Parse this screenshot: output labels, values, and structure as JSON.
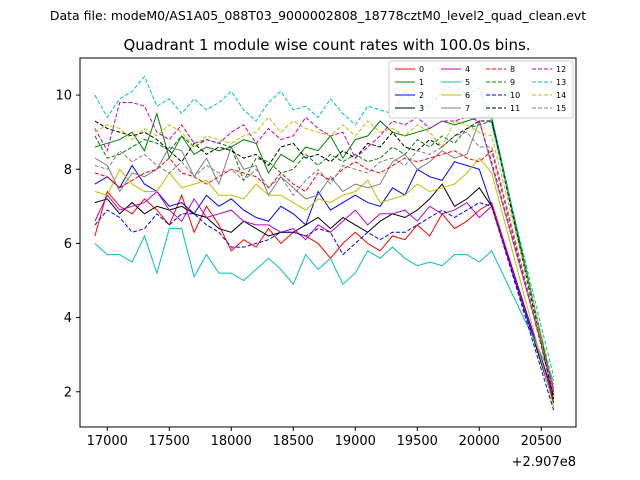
{
  "page": {
    "suptitle": "Data file: modeM0/AS1A05_088T03_9000002808_18778cztM0_level2_quad_clean.evt",
    "title": "Quadrant 1 module wise count rates with 100.0s bins."
  },
  "chart_data": {
    "type": "line",
    "title": "Quadrant 1 module wise count rates with 100.0s bins.",
    "xlabel": "",
    "ylabel": "",
    "x_offset_label": "+2.907e8",
    "xlim": [
      16780,
      20780
    ],
    "ylim": [
      1.05,
      11.0
    ],
    "xticks": [
      17000,
      17500,
      18000,
      18500,
      19000,
      19500,
      20000,
      20500
    ],
    "yticks": [
      2,
      4,
      6,
      8,
      10
    ],
    "grid": false,
    "legend_position": "top-right",
    "legend_columns": 4,
    "x_start": 16900,
    "x_step": 100,
    "drop_x": 20600,
    "series": [
      {
        "name": "0",
        "color": "#ff0000",
        "dash": "solid",
        "values": [
          6.2,
          7.4,
          7.0,
          6.8,
          7.2,
          6.9,
          6.5,
          7.3,
          6.3,
          7.0,
          6.5,
          5.8,
          6.1,
          5.9,
          6.4,
          6.0,
          6.3,
          6.2,
          6.0,
          5.6,
          6.0,
          6.3,
          6.0,
          5.8,
          6.2,
          6.1,
          6.5,
          6.2,
          6.8,
          6.4,
          6.6,
          6.9,
          7.1
        ],
        "drop": 1.8
      },
      {
        "name": "1",
        "color": "#008000",
        "dash": "solid",
        "values": [
          8.6,
          8.7,
          8.8,
          9.0,
          8.5,
          9.5,
          8.3,
          8.9,
          8.4,
          8.6,
          8.5,
          8.6,
          8.8,
          8.7,
          7.9,
          8.4,
          8.2,
          8.6,
          8.5,
          8.9,
          8.3,
          8.8,
          8.9,
          9.3,
          9.0,
          8.9,
          9.0,
          9.1,
          9.3,
          9.2,
          9.3,
          9.4,
          9.4
        ],
        "drop": 2.0
      },
      {
        "name": "2",
        "color": "#0000ff",
        "dash": "solid",
        "values": [
          7.6,
          7.8,
          7.5,
          8.1,
          7.6,
          7.4,
          7.0,
          7.1,
          6.8,
          7.3,
          7.0,
          7.2,
          6.9,
          6.7,
          6.6,
          7.0,
          6.8,
          6.5,
          7.4,
          6.9,
          7.1,
          7.3,
          7.1,
          7.0,
          7.5,
          7.3,
          8.0,
          7.8,
          7.7,
          8.2,
          8.1,
          8.0,
          7.0
        ],
        "drop": 1.9
      },
      {
        "name": "3",
        "color": "#000000",
        "dash": "solid",
        "values": [
          7.1,
          7.2,
          6.8,
          7.1,
          6.8,
          7.0,
          6.9,
          7.0,
          6.8,
          6.7,
          6.4,
          6.3,
          6.6,
          6.4,
          6.2,
          6.3,
          6.3,
          6.5,
          6.7,
          6.4,
          6.7,
          6.5,
          6.3,
          6.6,
          6.8,
          6.7,
          6.9,
          7.2,
          7.6,
          7.0,
          7.2,
          7.5,
          7.0
        ],
        "drop": 1.7
      },
      {
        "name": "4",
        "color": "#bf00bf",
        "dash": "solid",
        "values": [
          6.6,
          7.3,
          6.9,
          7.0,
          7.1,
          7.4,
          6.9,
          6.6,
          7.2,
          6.7,
          6.8,
          6.9,
          6.6,
          6.5,
          6.5,
          6.3,
          6.4,
          6.1,
          6.5,
          6.3,
          6.6,
          6.9,
          6.5,
          6.8,
          6.8,
          6.9,
          6.6,
          7.0,
          6.8,
          6.9,
          7.1,
          6.7,
          7.0
        ],
        "drop": 1.8
      },
      {
        "name": "5",
        "color": "#00bfbf",
        "dash": "solid",
        "values": [
          6.0,
          5.7,
          5.7,
          5.5,
          6.2,
          5.2,
          6.4,
          6.4,
          5.1,
          5.7,
          5.2,
          5.2,
          5.0,
          5.3,
          5.6,
          5.3,
          4.9,
          5.7,
          5.3,
          5.6,
          4.9,
          5.2,
          5.8,
          5.6,
          5.9,
          5.6,
          5.4,
          5.5,
          5.4,
          5.7,
          5.7,
          5.5,
          5.8
        ],
        "drop": 2.3
      },
      {
        "name": "6",
        "color": "#bfbf00",
        "dash": "solid",
        "values": [
          7.4,
          7.3,
          8.0,
          7.6,
          7.4,
          7.4,
          7.9,
          7.5,
          7.6,
          7.7,
          7.3,
          7.3,
          7.2,
          7.6,
          7.3,
          7.3,
          7.1,
          6.9,
          7.2,
          7.1,
          7.3,
          7.4,
          7.7,
          7.1,
          7.2,
          7.3,
          7.6,
          7.4,
          7.5,
          7.6,
          7.9,
          8.3,
          7.9
        ],
        "drop": 1.6
      },
      {
        "name": "7",
        "color": "#808080",
        "dash": "solid",
        "values": [
          8.3,
          8.1,
          7.4,
          7.9,
          7.8,
          8.0,
          8.6,
          8.5,
          7.8,
          8.3,
          7.6,
          8.6,
          8.0,
          8.1,
          7.3,
          7.8,
          7.5,
          7.2,
          7.3,
          7.8,
          7.4,
          7.6,
          7.5,
          7.6,
          8.2,
          8.4,
          8.0,
          8.2,
          8.5,
          8.3,
          8.4,
          9.3,
          8.1
        ],
        "drop": 2.1
      },
      {
        "name": "8",
        "color": "#ff0000",
        "dash": "dashed",
        "values": [
          7.9,
          7.8,
          7.5,
          7.7,
          7.9,
          8.0,
          8.3,
          7.9,
          7.8,
          7.6,
          7.8,
          8.0,
          7.9,
          7.8,
          7.5,
          7.9,
          7.6,
          7.4,
          7.9,
          7.7,
          8.0,
          8.2,
          8.0,
          7.9,
          8.1,
          8.3,
          8.2,
          8.3,
          8.4,
          8.5,
          8.3,
          8.2,
          8.5
        ],
        "drop": 1.9
      },
      {
        "name": "9",
        "color": "#008000",
        "dash": "dashed",
        "values": [
          8.9,
          8.3,
          8.4,
          8.6,
          8.8,
          8.7,
          8.5,
          8.9,
          8.6,
          8.8,
          8.7,
          8.6,
          7.7,
          8.3,
          8.2,
          7.9,
          8.0,
          8.4,
          8.1,
          8.4,
          8.2,
          8.4,
          8.2,
          8.3,
          8.6,
          8.4,
          8.8,
          8.6,
          8.9,
          8.7,
          9.1,
          9.2,
          9.3
        ],
        "drop": 2.0
      },
      {
        "name": "10",
        "color": "#0000ff",
        "dash": "dashed",
        "values": [
          6.5,
          6.9,
          6.7,
          6.3,
          6.4,
          6.8,
          6.5,
          6.8,
          6.8,
          6.5,
          6.3,
          5.9,
          5.9,
          6.0,
          6.1,
          6.3,
          6.3,
          6.2,
          6.4,
          6.3,
          5.7,
          6.0,
          6.3,
          6.1,
          6.3,
          6.3,
          6.5,
          6.7,
          6.9,
          6.7,
          6.9,
          7.1,
          7.0
        ],
        "drop": 1.5
      },
      {
        "name": "11",
        "color": "#000000",
        "dash": "dashed",
        "values": [
          9.3,
          9.1,
          9.0,
          8.9,
          9.0,
          8.8,
          8.5,
          8.2,
          8.7,
          8.4,
          8.6,
          8.5,
          8.3,
          8.4,
          8.1,
          8.6,
          8.7,
          8.3,
          8.4,
          8.2,
          8.5,
          8.3,
          8.7,
          8.6,
          9.0,
          8.6,
          8.5,
          8.8,
          8.6,
          8.9,
          9.1,
          9.3,
          9.3
        ],
        "drop": 1.8
      },
      {
        "name": "12",
        "color": "#bf00bf",
        "dash": "dashed",
        "values": [
          9.1,
          8.5,
          9.8,
          9.8,
          9.7,
          9.0,
          8.8,
          9.2,
          8.7,
          8.8,
          8.7,
          9.0,
          9.2,
          8.7,
          9.1,
          8.8,
          8.9,
          9.4,
          9.1,
          8.9,
          9.0,
          8.3,
          8.6,
          8.9,
          9.3,
          9.2,
          9.4,
          9.1,
          9.3,
          9.3,
          9.4,
          9.3,
          8.2
        ],
        "drop": 2.1
      },
      {
        "name": "13",
        "color": "#00bfbf",
        "dash": "dashed",
        "values": [
          10.0,
          9.4,
          9.9,
          10.1,
          10.5,
          9.7,
          9.9,
          9.5,
          9.9,
          9.6,
          9.8,
          10.1,
          9.6,
          9.3,
          9.8,
          10.1,
          9.6,
          9.7,
          9.4,
          9.9,
          9.5,
          9.2,
          9.7,
          9.6,
          9.5,
          10.1,
          9.7,
          9.7,
          10.1,
          10.3,
          10.0,
          10.2,
          9.2
        ],
        "drop": 2.4
      },
      {
        "name": "14",
        "color": "#bfbf00",
        "dash": "dashed",
        "values": [
          9.0,
          9.2,
          9.1,
          8.8,
          9.1,
          8.9,
          9.2,
          9.0,
          8.6,
          8.9,
          8.8,
          8.7,
          8.9,
          9.0,
          9.4,
          9.0,
          9.3,
          9.1,
          9.0,
          8.9,
          9.2,
          8.9,
          9.3,
          9.0,
          9.1,
          8.9,
          9.2,
          9.0,
          8.6,
          9.3,
          9.2,
          9.0,
          8.9
        ],
        "drop": 2.2
      },
      {
        "name": "15",
        "color": "#808080",
        "dash": "dashed",
        "values": [
          8.1,
          8.0,
          8.5,
          8.2,
          8.4,
          8.1,
          7.9,
          8.2,
          7.8,
          8.1,
          7.9,
          8.0,
          7.7,
          8.0,
          7.5,
          7.8,
          7.3,
          7.7,
          8.0,
          7.6,
          8.1,
          8.0,
          7.9,
          8.2,
          8.3,
          8.1,
          8.5,
          8.4,
          8.6,
          8.9,
          9.0,
          8.6,
          8.6
        ],
        "drop": 2.0
      }
    ]
  }
}
